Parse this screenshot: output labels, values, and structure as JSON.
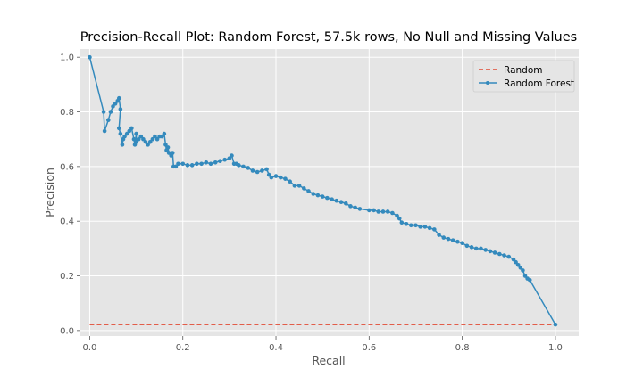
{
  "chart_data": {
    "type": "line",
    "title": "Precision-Recall Plot: Random Forest, 57.5k rows, No Null and Missing Values",
    "xlabel": "Recall",
    "ylabel": "Precision",
    "xlim": [
      -0.02,
      1.05
    ],
    "ylim": [
      -0.02,
      1.03
    ],
    "x_ticks": [
      0.0,
      0.2,
      0.4,
      0.6,
      0.8,
      1.0
    ],
    "x_tick_labels": [
      "0.0",
      "0.2",
      "0.4",
      "0.6",
      "0.8",
      "1.0"
    ],
    "y_ticks": [
      0.0,
      0.2,
      0.4,
      0.6,
      0.8,
      1.0
    ],
    "y_tick_labels": [
      "0.0",
      "0.2",
      "0.4",
      "0.6",
      "0.8",
      "1.0"
    ],
    "grid": true,
    "legend_position": "top-right",
    "series": [
      {
        "name": "Random",
        "style": "dashed",
        "color": "#E24A33",
        "markers": false,
        "x": [
          0.0,
          1.0
        ],
        "y": [
          0.022,
          0.022
        ]
      },
      {
        "name": "Random Forest",
        "style": "solid",
        "color": "#348ABD",
        "markers": true,
        "x": [
          0.0,
          0.03,
          0.032,
          0.04,
          0.045,
          0.05,
          0.055,
          0.06,
          0.063,
          0.066,
          0.063,
          0.066,
          0.07,
          0.072,
          0.075,
          0.08,
          0.085,
          0.09,
          0.095,
          0.097,
          0.1,
          0.1,
          0.105,
          0.11,
          0.115,
          0.12,
          0.125,
          0.13,
          0.135,
          0.14,
          0.145,
          0.15,
          0.155,
          0.16,
          0.163,
          0.165,
          0.168,
          0.17,
          0.175,
          0.178,
          0.18,
          0.185,
          0.19,
          0.2,
          0.21,
          0.22,
          0.23,
          0.24,
          0.25,
          0.26,
          0.27,
          0.28,
          0.29,
          0.3,
          0.305,
          0.31,
          0.315,
          0.32,
          0.33,
          0.34,
          0.35,
          0.36,
          0.37,
          0.38,
          0.385,
          0.39,
          0.4,
          0.41,
          0.42,
          0.43,
          0.44,
          0.45,
          0.46,
          0.47,
          0.48,
          0.49,
          0.5,
          0.51,
          0.52,
          0.53,
          0.54,
          0.55,
          0.56,
          0.57,
          0.58,
          0.6,
          0.61,
          0.62,
          0.63,
          0.64,
          0.65,
          0.66,
          0.665,
          0.67,
          0.68,
          0.69,
          0.7,
          0.71,
          0.72,
          0.73,
          0.74,
          0.75,
          0.76,
          0.77,
          0.78,
          0.79,
          0.8,
          0.81,
          0.82,
          0.83,
          0.84,
          0.85,
          0.86,
          0.87,
          0.88,
          0.89,
          0.9,
          0.91,
          0.915,
          0.92,
          0.925,
          0.93,
          0.935,
          0.94,
          0.945,
          1.0
        ],
        "y": [
          1.0,
          0.8,
          0.73,
          0.77,
          0.8,
          0.82,
          0.83,
          0.84,
          0.85,
          0.81,
          0.74,
          0.72,
          0.68,
          0.7,
          0.71,
          0.72,
          0.73,
          0.74,
          0.7,
          0.68,
          0.72,
          0.69,
          0.7,
          0.71,
          0.7,
          0.69,
          0.68,
          0.69,
          0.7,
          0.71,
          0.7,
          0.71,
          0.71,
          0.72,
          0.68,
          0.66,
          0.67,
          0.65,
          0.64,
          0.65,
          0.6,
          0.6,
          0.61,
          0.61,
          0.605,
          0.605,
          0.61,
          0.61,
          0.615,
          0.61,
          0.615,
          0.62,
          0.625,
          0.63,
          0.64,
          0.61,
          0.61,
          0.605,
          0.6,
          0.595,
          0.585,
          0.58,
          0.585,
          0.59,
          0.57,
          0.56,
          0.565,
          0.56,
          0.555,
          0.545,
          0.53,
          0.53,
          0.52,
          0.51,
          0.5,
          0.495,
          0.49,
          0.485,
          0.48,
          0.475,
          0.47,
          0.465,
          0.455,
          0.45,
          0.445,
          0.44,
          0.44,
          0.435,
          0.435,
          0.435,
          0.43,
          0.42,
          0.41,
          0.395,
          0.39,
          0.385,
          0.385,
          0.38,
          0.38,
          0.375,
          0.37,
          0.35,
          0.34,
          0.335,
          0.33,
          0.325,
          0.32,
          0.31,
          0.305,
          0.3,
          0.3,
          0.295,
          0.29,
          0.285,
          0.28,
          0.275,
          0.27,
          0.26,
          0.25,
          0.24,
          0.23,
          0.22,
          0.2,
          0.19,
          0.185,
          0.022
        ]
      }
    ]
  }
}
